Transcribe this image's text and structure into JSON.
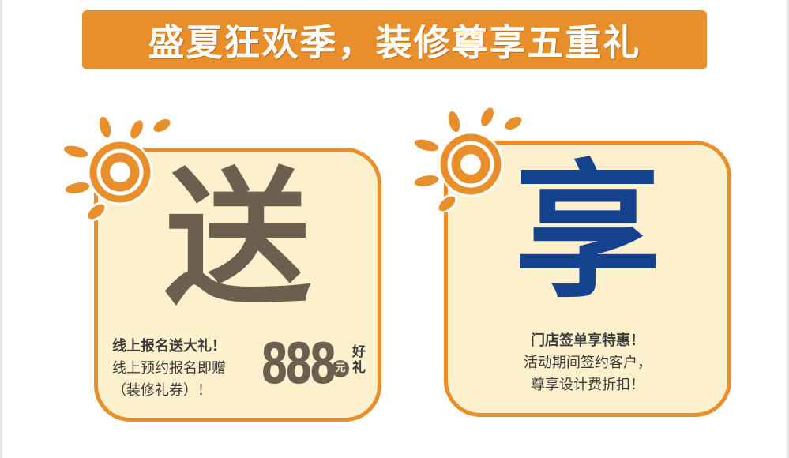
{
  "banner": {
    "title": "盛夏狂欢季，装修尊享五重礼"
  },
  "cards": [
    {
      "char": "送",
      "char_color": "#6b5f50",
      "line1": "线上报名送大礼！",
      "line2": "线上预约报名即赠",
      "line3": "（装修礼券）！",
      "amount": "888",
      "unit": "元",
      "suffix": "好礼"
    },
    {
      "char": "享",
      "char_color": "#15428f",
      "line1": "门店签单享特惠！",
      "line2": "活动期间签约客户，",
      "line3": "尊享设计费折扣！"
    }
  ],
  "colors": {
    "accent": "#e88e2b",
    "card_bg": "#fdf0cc"
  },
  "icons": {
    "sun": "sun-icon"
  }
}
